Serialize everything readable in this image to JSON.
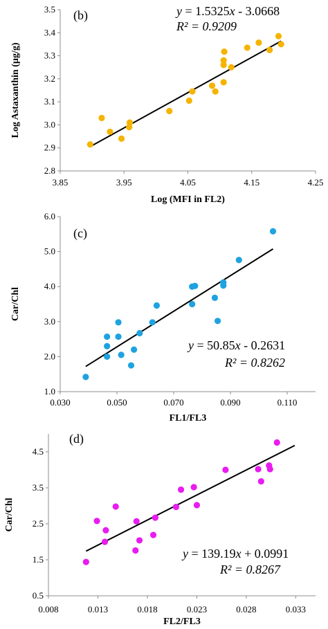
{
  "chart_data": [
    {
      "type": "scatter",
      "panel_label": "(b)",
      "xlabel": "Log (MFI in  FL2)",
      "ylabel": "Log Astaxanthin (µg/g)",
      "xlim": [
        3.85,
        4.25
      ],
      "ylim": [
        2.8,
        3.5
      ],
      "x_ticks": [
        "3.85",
        "3.95",
        "4.05",
        "4.15",
        "4.25"
      ],
      "y_ticks": [
        "2.8",
        "2.9",
        "3.0",
        "3.1",
        "3.2",
        "3.3",
        "3.4",
        "3.5"
      ],
      "marker_color": "#f5b400",
      "trendline": {
        "slope": 1.5325,
        "intercept": -3.0668,
        "x_range": [
          3.897,
          4.196
        ]
      },
      "equation": {
        "prefix": "y",
        "body": " = 1.5325",
        "x": "x",
        "rest": " - 3.0668",
        "r2": "R² = 0.9209"
      },
      "legend_position": "top",
      "points": [
        [
          3.897,
          2.915
        ],
        [
          3.915,
          3.03
        ],
        [
          3.928,
          2.97
        ],
        [
          3.946,
          2.94
        ],
        [
          3.958,
          2.99
        ],
        [
          3.959,
          3.01
        ],
        [
          4.021,
          3.06
        ],
        [
          4.052,
          3.105
        ],
        [
          4.057,
          3.145
        ],
        [
          4.088,
          3.17
        ],
        [
          4.093,
          3.145
        ],
        [
          4.106,
          3.185
        ],
        [
          4.106,
          3.26
        ],
        [
          4.106,
          3.28
        ],
        [
          4.107,
          3.318
        ],
        [
          4.118,
          3.25
        ],
        [
          4.143,
          3.335
        ],
        [
          4.161,
          3.357
        ],
        [
          4.178,
          3.325
        ],
        [
          4.192,
          3.385
        ],
        [
          4.196,
          3.35
        ]
      ]
    },
    {
      "type": "scatter",
      "panel_label": "(c)",
      "xlabel": "FL1/FL3",
      "ylabel": "Car/Chl",
      "xlim": [
        0.03,
        0.12
      ],
      "ylim": [
        1.0,
        6.0
      ],
      "x_ticks": [
        "0.030",
        "0.050",
        "0.070",
        "0.090",
        "0.110"
      ],
      "y_ticks": [
        "1.0",
        "2.0",
        "3.0",
        "4.0",
        "5.0",
        "6.0"
      ],
      "marker_color": "#1fa2e0",
      "trendline": {
        "slope": 50.85,
        "intercept": -0.2631,
        "x_range": [
          0.039,
          0.105
        ]
      },
      "equation": {
        "prefix": "y",
        "body": " = 50.85",
        "x": "x",
        "rest": " - 0.2631",
        "r2": "R² = 0.8262"
      },
      "legend_position": "bottom-right",
      "points": [
        [
          0.039,
          1.42
        ],
        [
          0.0465,
          2.0
        ],
        [
          0.0465,
          2.3
        ],
        [
          0.0465,
          2.57
        ],
        [
          0.0505,
          2.57
        ],
        [
          0.0505,
          2.98
        ],
        [
          0.0515,
          2.05
        ],
        [
          0.055,
          1.75
        ],
        [
          0.056,
          2.2
        ],
        [
          0.058,
          2.67
        ],
        [
          0.0625,
          2.98
        ],
        [
          0.064,
          3.46
        ],
        [
          0.0765,
          3.5
        ],
        [
          0.0765,
          4.0
        ],
        [
          0.0775,
          4.02
        ],
        [
          0.0845,
          3.68
        ],
        [
          0.0855,
          3.02
        ],
        [
          0.0875,
          4.03
        ],
        [
          0.0875,
          4.12
        ],
        [
          0.093,
          4.76
        ],
        [
          0.105,
          5.58
        ]
      ]
    },
    {
      "type": "scatter",
      "panel_label": "(d)",
      "xlabel": "FL2/FL3",
      "ylabel": "Car/Chl",
      "xlim": [
        0.008,
        0.035
      ],
      "ylim": [
        0.5,
        5.0
      ],
      "x_ticks": [
        "0.008",
        "0.013",
        "0.018",
        "0.023",
        "0.028",
        "0.033"
      ],
      "y_ticks": [
        "0.5",
        "1.5",
        "2.5",
        "3.5",
        "4.5"
      ],
      "marker_color": "#e81cf0",
      "trendline": {
        "slope": 139.19,
        "intercept": 0.0991,
        "x_range": [
          0.0118,
          0.0329
        ]
      },
      "equation": {
        "prefix": "y",
        "body": " = 139.19",
        "x": "x",
        "rest": " + 0.0991",
        "r2": "R² = 0.8267"
      },
      "legend_position": "bottom-right",
      "points": [
        [
          0.0118,
          1.44
        ],
        [
          0.0129,
          2.58
        ],
        [
          0.0137,
          2.0
        ],
        [
          0.0138,
          2.32
        ],
        [
          0.0148,
          2.98
        ],
        [
          0.0168,
          1.76
        ],
        [
          0.0169,
          2.57
        ],
        [
          0.0172,
          2.04
        ],
        [
          0.0186,
          2.19
        ],
        [
          0.0188,
          2.67
        ],
        [
          0.0209,
          2.97
        ],
        [
          0.0214,
          3.45
        ],
        [
          0.0227,
          3.52
        ],
        [
          0.023,
          3.02
        ],
        [
          0.0259,
          4.0
        ],
        [
          0.0292,
          4.02
        ],
        [
          0.0295,
          3.68
        ],
        [
          0.0303,
          4.12
        ],
        [
          0.0304,
          4.02
        ],
        [
          0.0311,
          4.76
        ]
      ]
    }
  ]
}
